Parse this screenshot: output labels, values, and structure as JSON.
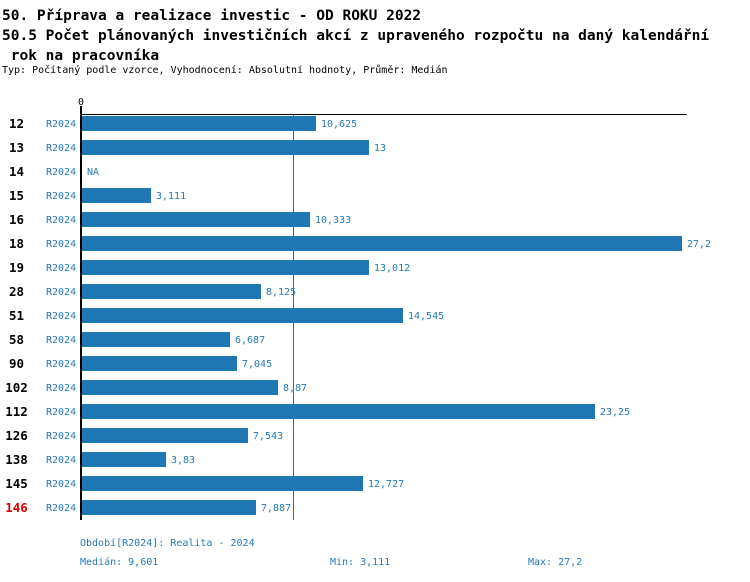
{
  "header": {
    "title_line1": "50. Příprava a realizace investic - OD ROKU 2022",
    "title_line2": "50.5 Počet plánovaných investičních akcí z upraveného rozpočtu na daný kalendářní",
    "title_line3": " rok na pracovníka",
    "subtitle": "Typ: Počítaný podle vzorce, Vyhodnocení: Absolutní hodnoty, Průměr: Medián"
  },
  "chart_data": {
    "type": "bar",
    "orientation": "horizontal",
    "title": "50.5 Počet plánovaných investičních akcí z upraveného rozpočtu na daný kalendářní rok na pracovníka",
    "series_name": "R2024",
    "x_axis": {
      "tick_labels": [
        "0"
      ],
      "xlim": [
        0,
        30
      ]
    },
    "median_line_value": 9.601,
    "rows": [
      {
        "category": "12",
        "period": "R2024",
        "value": 10.625,
        "label": "10,625",
        "highlight": false
      },
      {
        "category": "13",
        "period": "R2024",
        "value": 13,
        "label": "13",
        "highlight": false
      },
      {
        "category": "14",
        "period": "R2024",
        "value": null,
        "label": "NA",
        "highlight": false
      },
      {
        "category": "15",
        "period": "R2024",
        "value": 3.111,
        "label": "3,111",
        "highlight": false
      },
      {
        "category": "16",
        "period": "R2024",
        "value": 10.333,
        "label": "10,333",
        "highlight": false
      },
      {
        "category": "18",
        "period": "R2024",
        "value": 27.2,
        "label": "27,2",
        "highlight": false
      },
      {
        "category": "19",
        "period": "R2024",
        "value": 13.012,
        "label": "13,012",
        "highlight": false
      },
      {
        "category": "28",
        "period": "R2024",
        "value": 8.125,
        "label": "8,125",
        "highlight": false
      },
      {
        "category": "51",
        "period": "R2024",
        "value": 14.545,
        "label": "14,545",
        "highlight": false
      },
      {
        "category": "58",
        "period": "R2024",
        "value": 6.687,
        "label": "6,687",
        "highlight": false
      },
      {
        "category": "90",
        "period": "R2024",
        "value": 7.045,
        "label": "7,045",
        "highlight": false
      },
      {
        "category": "102",
        "period": "R2024",
        "value": 8.87,
        "label": "8,87",
        "highlight": false
      },
      {
        "category": "112",
        "period": "R2024",
        "value": 23.25,
        "label": "23,25",
        "highlight": false
      },
      {
        "category": "126",
        "period": "R2024",
        "value": 7.543,
        "label": "7,543",
        "highlight": false
      },
      {
        "category": "138",
        "period": "R2024",
        "value": 3.83,
        "label": "3,83",
        "highlight": false
      },
      {
        "category": "145",
        "period": "R2024",
        "value": 12.727,
        "label": "12,727",
        "highlight": false
      },
      {
        "category": "146",
        "period": "R2024",
        "value": 7.887,
        "label": "7,887",
        "highlight": true
      }
    ],
    "stats": {
      "median": 9.601,
      "min": 3.111,
      "max": 27.2
    },
    "colors": {
      "bar": "#1f77b4",
      "label_text": "#2579b9",
      "median_line": "#1f77b4",
      "highlight_row": "#dd0000",
      "axis": "#000000"
    }
  },
  "footer": {
    "period_label": "Období[R2024]: Realita - 2024",
    "median_label": "Medián: 9,601",
    "min_label": "Min: 3,111",
    "max_label": "Max: 27,2"
  }
}
